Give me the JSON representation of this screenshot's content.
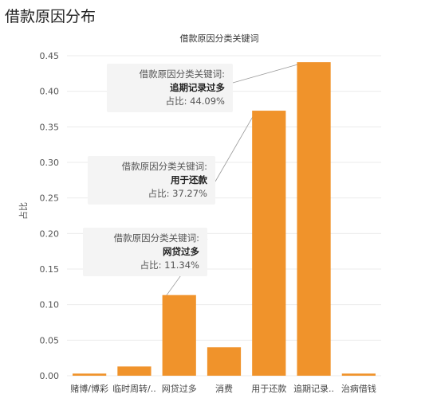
{
  "page": {
    "title": "借款原因分布"
  },
  "chart_data": {
    "type": "bar",
    "title": "借款原因分类关键词",
    "xlabel": "",
    "ylabel": "占比",
    "ylim": [
      0,
      0.45
    ],
    "yticks": [
      0.0,
      0.05,
      0.1,
      0.15,
      0.2,
      0.25,
      0.3,
      0.35,
      0.4,
      0.45
    ],
    "ytick_labels": [
      "0.00",
      "0.05",
      "0.10",
      "0.15",
      "0.20",
      "0.25",
      "0.30",
      "0.35",
      "0.40",
      "0.45"
    ],
    "categories": [
      "赌博/博彩",
      "临时周转/..",
      "网贷过多",
      "消费",
      "用于还款",
      "追期记录..",
      "治病借钱"
    ],
    "values": [
      0.003,
      0.013,
      0.1134,
      0.04,
      0.3727,
      0.4409,
      0.003
    ],
    "bar_color": "#f0932b",
    "grid": true,
    "annotations": [
      {
        "header": "借款原因分类关键词:",
        "category": "网贷过多",
        "share": "占比: 11.34%",
        "target_index": 2
      },
      {
        "header": "借款原因分类关键词:",
        "category": "用于还款",
        "share": "占比: 37.27%",
        "target_index": 4
      },
      {
        "header": "借款原因分类关键词:",
        "category": "追期记录过多",
        "share": "占比: 44.09%",
        "target_index": 5
      }
    ]
  }
}
